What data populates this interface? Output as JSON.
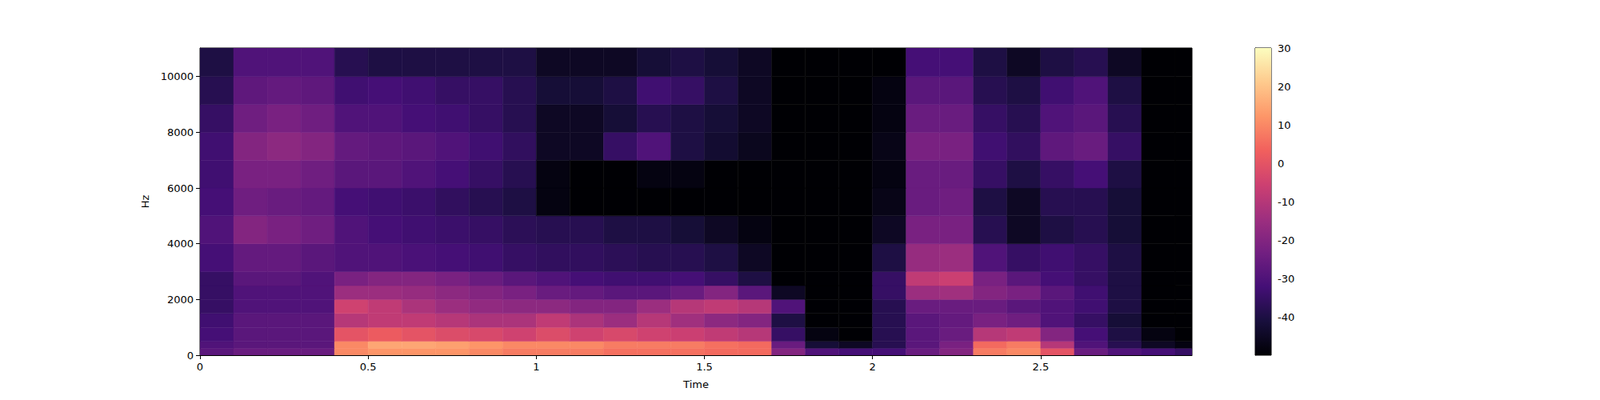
{
  "chart_data": {
    "type": "spectrogram",
    "x_label": "Time",
    "y_label": "Hz",
    "xlim": [
      0,
      2.95
    ],
    "xticks": [
      0,
      0.5,
      1,
      1.5,
      2,
      2.5
    ],
    "ylim": [
      0,
      11025
    ],
    "yticks": [
      0,
      2000,
      4000,
      6000,
      8000,
      10000
    ],
    "time_edges": [
      0,
      0.1,
      0.2,
      0.3,
      0.4,
      0.5,
      0.6,
      0.7,
      0.8,
      0.9,
      1.0,
      1.1,
      1.2,
      1.3,
      1.4,
      1.5,
      1.6,
      1.7,
      1.8,
      1.9,
      2.0,
      2.1,
      2.2,
      2.3,
      2.4,
      2.5,
      2.6,
      2.7,
      2.8,
      2.9,
      2.95
    ],
    "freq_edges": [
      0,
      250,
      500,
      1000,
      1500,
      2000,
      2500,
      3000,
      4000,
      5000,
      6000,
      7000,
      8000,
      9000,
      10000,
      11025
    ],
    "cells": [
      [
        -28,
        -25,
        -25,
        -25,
        10,
        12,
        12,
        12,
        10,
        8,
        8,
        8,
        6,
        6,
        6,
        5,
        5,
        -20,
        -30,
        -32,
        -32,
        -25,
        -20,
        8,
        10,
        0,
        -25,
        -30,
        -32,
        -35
      ],
      [
        -30,
        -28,
        -28,
        -28,
        10,
        15,
        15,
        14,
        12,
        10,
        10,
        10,
        8,
        8,
        8,
        6,
        5,
        -25,
        -42,
        -45,
        -38,
        -28,
        -22,
        5,
        8,
        -10,
        -30,
        -38,
        -45,
        -48
      ],
      [
        -32,
        -28,
        -28,
        -28,
        0,
        2,
        0,
        -2,
        -3,
        -5,
        -2,
        -5,
        -3,
        -5,
        -6,
        -8,
        -10,
        -35,
        -48,
        -50,
        -38,
        -28,
        -25,
        -10,
        -8,
        -20,
        -32,
        -40,
        -48,
        -50
      ],
      [
        -33,
        -28,
        -28,
        -28,
        -10,
        -8,
        -8,
        -10,
        -12,
        -12,
        -8,
        -12,
        -15,
        -10,
        -14,
        -18,
        -20,
        -40,
        -50,
        -50,
        -38,
        -28,
        -26,
        -22,
        -24,
        -30,
        -35,
        -42,
        -50,
        -50
      ],
      [
        -35,
        -30,
        -30,
        -30,
        -5,
        -8,
        -12,
        -15,
        -17,
        -18,
        -18,
        -20,
        -20,
        -15,
        -10,
        -8,
        -10,
        -30,
        -50,
        -50,
        -38,
        -25,
        -25,
        -25,
        -28,
        -30,
        -33,
        -40,
        -50,
        -50
      ],
      [
        -35,
        -30,
        -30,
        -30,
        -15,
        -15,
        -16,
        -18,
        -20,
        -22,
        -25,
        -26,
        -28,
        -28,
        -25,
        -20,
        -28,
        -45,
        -50,
        -50,
        -35,
        -15,
        -14,
        -20,
        -22,
        -28,
        -33,
        -40,
        -50,
        -50
      ],
      [
        -35,
        -28,
        -28,
        -30,
        -22,
        -20,
        -20,
        -22,
        -25,
        -28,
        -30,
        -32,
        -33,
        -33,
        -32,
        -35,
        -40,
        -50,
        -50,
        -50,
        -35,
        -8,
        -6,
        -22,
        -28,
        -32,
        -35,
        -40,
        -50,
        -50
      ],
      [
        -32,
        -26,
        -26,
        -28,
        -30,
        -30,
        -31,
        -32,
        -33,
        -35,
        -36,
        -36,
        -37,
        -38,
        -38,
        -40,
        -45,
        -50,
        -50,
        -50,
        -40,
        -16,
        -15,
        -30,
        -35,
        -33,
        -35,
        -40,
        -50,
        -50
      ],
      [
        -30,
        -20,
        -22,
        -24,
        -30,
        -32,
        -33,
        -34,
        -35,
        -37,
        -38,
        -38,
        -40,
        -40,
        -42,
        -45,
        -48,
        -50,
        -50,
        -50,
        -45,
        -22,
        -22,
        -38,
        -45,
        -40,
        -38,
        -42,
        -50,
        -50
      ],
      [
        -32,
        -24,
        -25,
        -26,
        -32,
        -33,
        -34,
        -36,
        -38,
        -40,
        -48,
        -50,
        -50,
        -50,
        -50,
        -50,
        -50,
        -50,
        -50,
        -50,
        -47,
        -25,
        -24,
        -40,
        -45,
        -38,
        -38,
        -42,
        -50,
        -50
      ],
      [
        -33,
        -22,
        -22,
        -24,
        -28,
        -28,
        -30,
        -32,
        -35,
        -38,
        -48,
        -50,
        -50,
        -48,
        -48,
        -50,
        -50,
        -50,
        -50,
        -50,
        -48,
        -25,
        -25,
        -35,
        -40,
        -35,
        -32,
        -40,
        -50,
        -50
      ],
      [
        -33,
        -20,
        -18,
        -20,
        -26,
        -27,
        -28,
        -30,
        -33,
        -36,
        -45,
        -45,
        -35,
        -30,
        -40,
        -43,
        -46,
        -50,
        -50,
        -50,
        -47,
        -22,
        -22,
        -33,
        -36,
        -27,
        -25,
        -35,
        -50,
        -50
      ],
      [
        -35,
        -24,
        -22,
        -24,
        -30,
        -30,
        -32,
        -33,
        -35,
        -38,
        -45,
        -45,
        -42,
        -38,
        -40,
        -42,
        -45,
        -50,
        -50,
        -50,
        -48,
        -25,
        -25,
        -35,
        -38,
        -30,
        -28,
        -38,
        -50,
        -50
      ],
      [
        -38,
        -27,
        -26,
        -27,
        -33,
        -32,
        -33,
        -35,
        -35,
        -38,
        -42,
        -42,
        -40,
        -33,
        -35,
        -40,
        -45,
        -50,
        -50,
        -50,
        -48,
        -28,
        -28,
        -38,
        -40,
        -33,
        -30,
        -40,
        -50,
        -50
      ],
      [
        -40,
        -30,
        -30,
        -30,
        -38,
        -40,
        -40,
        -40,
        -40,
        -40,
        -45,
        -45,
        -45,
        -42,
        -40,
        -42,
        -45,
        -50,
        -50,
        -50,
        -50,
        -32,
        -32,
        -40,
        -45,
        -40,
        -38,
        -45,
        -50,
        -50
      ]
    ],
    "colorbar": {
      "range": [
        -50,
        30
      ],
      "ticks": [
        -40,
        -30,
        -20,
        -10,
        0,
        10,
        20,
        30
      ]
    }
  }
}
